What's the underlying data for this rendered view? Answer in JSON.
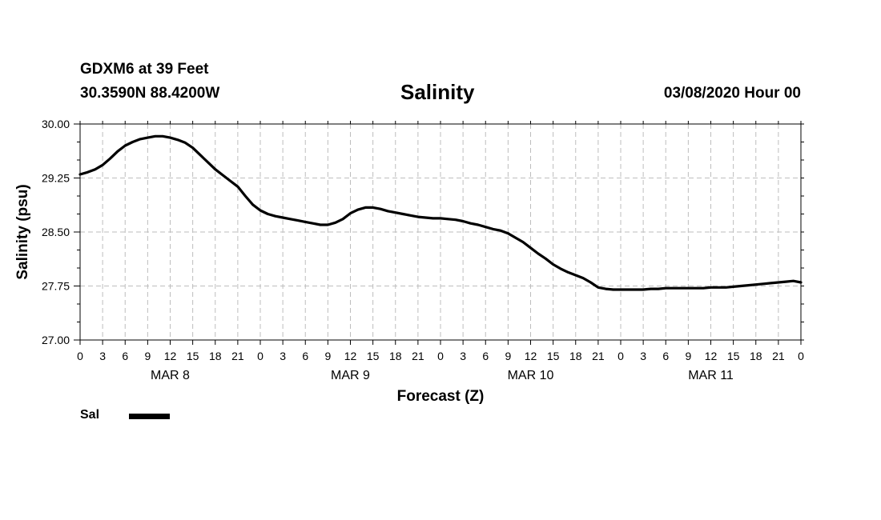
{
  "header": {
    "station": "GDXM6 at 39 Feet",
    "coords": "30.3590N 88.4200W",
    "title": "Salinity",
    "date": "03/08/2020 Hour 00"
  },
  "legend": {
    "label": "Sal"
  },
  "chart_data": {
    "type": "line",
    "title": "Salinity",
    "xlabel": "Forecast (Z)",
    "ylabel": "Salinity (psu)",
    "xlim": [
      0,
      96
    ],
    "ylim": [
      27.0,
      30.0
    ],
    "yticks": [
      27.0,
      27.75,
      28.5,
      29.25,
      30.0
    ],
    "ytick_labels": [
      "27.00",
      "27.75",
      "28.50",
      "29.25",
      "30.00"
    ],
    "xtick_step_hours": 3,
    "xtick_labels": [
      "0",
      "3",
      "6",
      "9",
      "12",
      "15",
      "18",
      "21",
      "0",
      "3",
      "6",
      "9",
      "12",
      "15",
      "18",
      "21",
      "0",
      "3",
      "6",
      "9",
      "12",
      "15",
      "18",
      "21",
      "0",
      "3",
      "6",
      "9",
      "12",
      "15",
      "18",
      "21",
      "0"
    ],
    "day_labels": [
      {
        "label": "MAR 8",
        "hour": 12
      },
      {
        "label": "MAR 9",
        "hour": 36
      },
      {
        "label": "MAR 10",
        "hour": 60
      },
      {
        "label": "MAR 11",
        "hour": 84
      }
    ],
    "grid": true,
    "legend_position": "bottom-left",
    "series": [
      {
        "name": "Sal",
        "x": [
          0,
          1,
          2,
          3,
          4,
          5,
          6,
          7,
          8,
          9,
          10,
          11,
          12,
          13,
          14,
          15,
          16,
          17,
          18,
          19,
          20,
          21,
          22,
          23,
          24,
          25,
          26,
          27,
          28,
          29,
          30,
          31,
          32,
          33,
          34,
          35,
          36,
          37,
          38,
          39,
          40,
          41,
          42,
          43,
          44,
          45,
          46,
          47,
          48,
          49,
          50,
          51,
          52,
          53,
          54,
          55,
          56,
          57,
          58,
          59,
          60,
          61,
          62,
          63,
          64,
          65,
          66,
          67,
          68,
          69,
          70,
          71,
          72,
          73,
          74,
          75,
          76,
          77,
          78,
          79,
          80,
          81,
          82,
          83,
          84,
          85,
          86,
          87,
          88,
          89,
          90,
          91,
          92,
          93,
          94,
          95,
          96
        ],
        "values": [
          29.3,
          29.33,
          29.37,
          29.43,
          29.52,
          29.62,
          29.7,
          29.75,
          29.79,
          29.81,
          29.83,
          29.83,
          29.81,
          29.78,
          29.74,
          29.67,
          29.57,
          29.47,
          29.37,
          29.29,
          29.21,
          29.13,
          29.0,
          28.88,
          28.8,
          28.75,
          28.72,
          28.7,
          28.68,
          28.66,
          28.64,
          28.62,
          28.6,
          28.6,
          28.63,
          28.68,
          28.76,
          28.81,
          28.84,
          28.84,
          28.82,
          28.79,
          28.77,
          28.75,
          28.73,
          28.71,
          28.7,
          28.69,
          28.69,
          28.68,
          28.67,
          28.65,
          28.62,
          28.6,
          28.57,
          28.54,
          28.52,
          28.48,
          28.42,
          28.36,
          28.28,
          28.2,
          28.13,
          28.05,
          27.99,
          27.94,
          27.9,
          27.86,
          27.8,
          27.73,
          27.71,
          27.7,
          27.7,
          27.7,
          27.7,
          27.7,
          27.71,
          27.71,
          27.72,
          27.72,
          27.72,
          27.72,
          27.72,
          27.72,
          27.73,
          27.73,
          27.73,
          27.74,
          27.75,
          27.76,
          27.77,
          27.78,
          27.79,
          27.8,
          27.81,
          27.82,
          27.8
        ]
      }
    ]
  }
}
